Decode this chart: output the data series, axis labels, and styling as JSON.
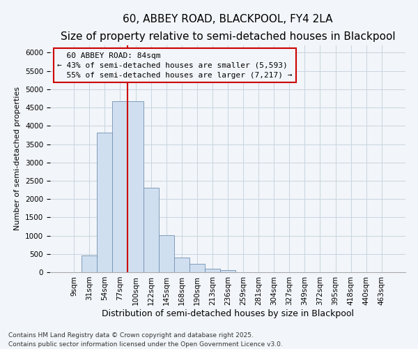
{
  "title": "60, ABBEY ROAD, BLACKPOOL, FY4 2LA",
  "subtitle": "Size of property relative to semi-detached houses in Blackpool",
  "xlabel": "Distribution of semi-detached houses by size in Blackpool",
  "ylabel": "Number of semi-detached properties",
  "footer_line1": "Contains HM Land Registry data © Crown copyright and database right 2025.",
  "footer_line2": "Contains public sector information licensed under the Open Government Licence v3.0.",
  "categories": [
    "9sqm",
    "31sqm",
    "54sqm",
    "77sqm",
    "100sqm",
    "122sqm",
    "145sqm",
    "168sqm",
    "190sqm",
    "213sqm",
    "236sqm",
    "259sqm",
    "281sqm",
    "304sqm",
    "327sqm",
    "349sqm",
    "372sqm",
    "395sqm",
    "418sqm",
    "440sqm",
    "463sqm"
  ],
  "values": [
    0,
    450,
    3820,
    4680,
    4680,
    2300,
    1010,
    410,
    220,
    90,
    65,
    0,
    0,
    0,
    0,
    0,
    0,
    0,
    0,
    0,
    0
  ],
  "bar_color": "#d0dff0",
  "bar_edge_color": "#7090b0",
  "marker_bin_index": 3,
  "marker_label": "60 ABBEY ROAD: 84sqm",
  "pct_smaller": 43,
  "count_smaller": 5593,
  "pct_larger": 55,
  "count_larger": 7217,
  "marker_line_color": "#cc0000",
  "annotation_box_edge_color": "#cc0000",
  "ylim": [
    0,
    6200
  ],
  "yticks": [
    0,
    500,
    1000,
    1500,
    2000,
    2500,
    3000,
    3500,
    4000,
    4500,
    5000,
    5500,
    6000
  ],
  "grid_color": "#c8d4e0",
  "background_color": "#f2f5f9",
  "title_fontsize": 11,
  "subtitle_fontsize": 9,
  "xlabel_fontsize": 9,
  "ylabel_fontsize": 8,
  "tick_fontsize": 7.5,
  "annotation_fontsize": 8,
  "footer_fontsize": 6.5
}
